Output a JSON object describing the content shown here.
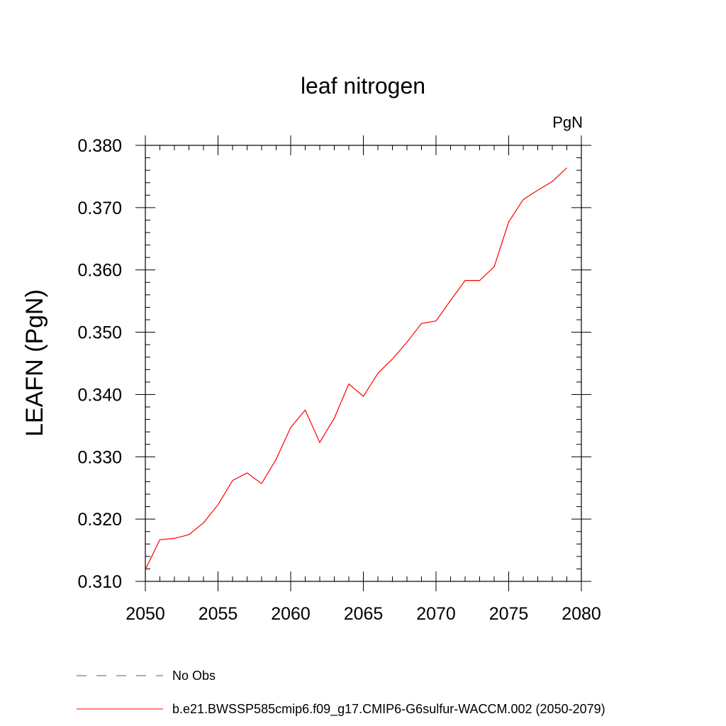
{
  "chart_data": {
    "type": "line",
    "title": "leaf nitrogen",
    "units_label": "PgN",
    "ylabel": "LEAFN  (PgN)",
    "xlabel": "",
    "xlim": [
      2050,
      2080
    ],
    "ylim": [
      0.31,
      0.38
    ],
    "xticks": [
      "2050",
      "2055",
      "2060",
      "2065",
      "2070",
      "2075",
      "2080"
    ],
    "yticks": [
      "0.310",
      "0.320",
      "0.330",
      "0.340",
      "0.350",
      "0.360",
      "0.370",
      "0.380"
    ],
    "grid": false,
    "legend_position": "bottom",
    "series": [
      {
        "name": "No Obs",
        "color": "#5a4fb0",
        "style": "dashed",
        "x": [],
        "y": []
      },
      {
        "name": "b.e21.BWSSP585cmip6.f09_g17.CMIP6-G6sulfur-WACCM.002 (2050-2079)",
        "color": "#ff0000",
        "style": "solid",
        "x": [
          2050,
          2051,
          2052,
          2053,
          2054,
          2055,
          2056,
          2057,
          2058,
          2059,
          2060,
          2061,
          2062,
          2063,
          2064,
          2065,
          2066,
          2067,
          2068,
          2069,
          2070,
          2071,
          2072,
          2073,
          2074,
          2075,
          2076,
          2077,
          2078,
          2079
        ],
        "y": [
          0.3119,
          0.3167,
          0.3169,
          0.3175,
          0.3194,
          0.3223,
          0.3262,
          0.3274,
          0.3257,
          0.3296,
          0.3347,
          0.3375,
          0.3323,
          0.3362,
          0.3417,
          0.3397,
          0.3434,
          0.3457,
          0.3484,
          0.3514,
          0.3518,
          0.3551,
          0.3583,
          0.3583,
          0.3605,
          0.3677,
          0.3713,
          0.3728,
          0.3742,
          0.3764
        ]
      }
    ]
  }
}
